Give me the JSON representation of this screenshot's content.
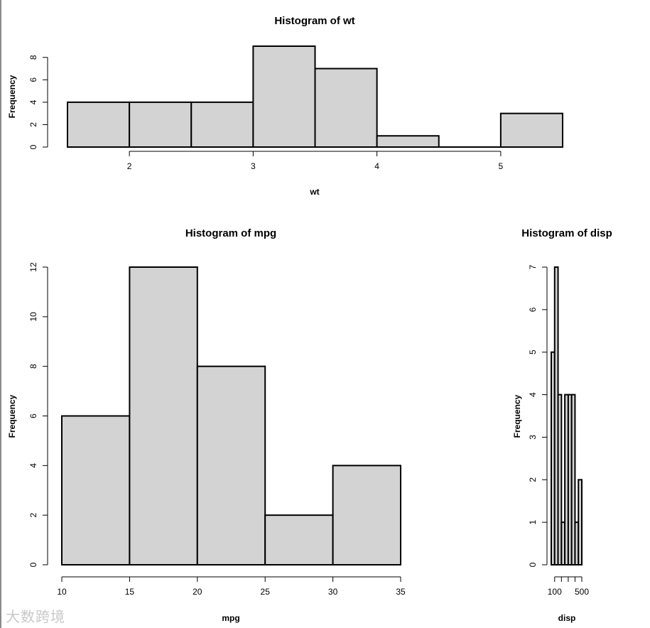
{
  "chart_data": [
    {
      "type": "bar",
      "title": "Histogram of wt",
      "xlabel": "wt",
      "ylabel": "Frequency",
      "bins": [
        [
          1.5,
          2.0
        ],
        [
          2.0,
          2.5
        ],
        [
          2.5,
          3.0
        ],
        [
          3.0,
          3.5
        ],
        [
          3.5,
          4.0
        ],
        [
          4.0,
          4.5
        ],
        [
          4.5,
          5.0
        ],
        [
          5.0,
          5.5
        ]
      ],
      "values": [
        4,
        4,
        4,
        9,
        7,
        1,
        0,
        3
      ],
      "xticks": [
        2,
        3,
        4,
        5
      ],
      "yticks": [
        0,
        2,
        4,
        6,
        8
      ],
      "xlim": [
        1.5,
        5.5
      ],
      "ylim": [
        0,
        9
      ],
      "bar_color": "#d3d3d3",
      "grid": false
    },
    {
      "type": "bar",
      "title": "Histogram of mpg",
      "xlabel": "mpg",
      "ylabel": "Frequency",
      "bins": [
        [
          10,
          15
        ],
        [
          15,
          20
        ],
        [
          20,
          25
        ],
        [
          25,
          30
        ],
        [
          30,
          35
        ]
      ],
      "values": [
        6,
        12,
        8,
        2,
        4
      ],
      "xticks": [
        10,
        15,
        20,
        25,
        30,
        35
      ],
      "yticks": [
        0,
        2,
        4,
        6,
        8,
        10,
        12
      ],
      "xlim": [
        10,
        35
      ],
      "ylim": [
        0,
        12
      ],
      "bar_color": "#d3d3d3",
      "grid": false
    },
    {
      "type": "bar",
      "title": "Histogram of disp",
      "xlabel": "disp",
      "ylabel": "Frequency",
      "bins": [
        [
          50,
          100
        ],
        [
          100,
          150
        ],
        [
          150,
          200
        ],
        [
          200,
          250
        ],
        [
          250,
          300
        ],
        [
          300,
          350
        ],
        [
          350,
          400
        ],
        [
          400,
          450
        ],
        [
          450,
          500
        ]
      ],
      "values": [
        5,
        7,
        4,
        1,
        4,
        4,
        4,
        1,
        2
      ],
      "xticks": [
        100,
        200,
        300,
        400,
        500
      ],
      "xtick_labels": [
        "100",
        "",
        "",
        "",
        "500"
      ],
      "yticks": [
        0,
        1,
        2,
        3,
        4,
        5,
        6,
        7
      ],
      "xlim": [
        50,
        500
      ],
      "ylim": [
        0,
        7
      ],
      "bar_color": "#d3d3d3",
      "grid": false
    }
  ],
  "watermark": "大数跨境"
}
